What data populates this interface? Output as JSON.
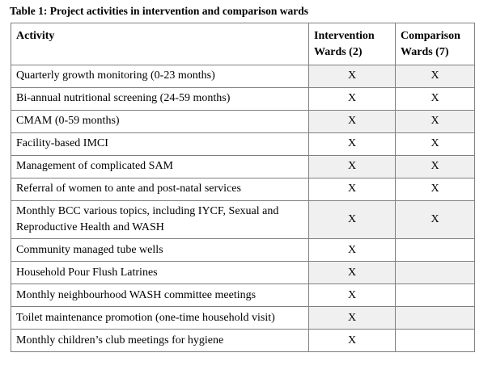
{
  "title": "Table 1: Project activities in intervention and comparison wards",
  "colors": {
    "border": "#808080",
    "row_shading": "#f0f0f1",
    "text": "#000000",
    "background": "#ffffff"
  },
  "table": {
    "columns": [
      {
        "label": "Activity"
      },
      {
        "label": "Intervention Wards (2)"
      },
      {
        "label": "Comparison Wards (7)"
      }
    ],
    "rows": [
      {
        "activity": "Quarterly growth monitoring (0-23 months)",
        "intervention": "X",
        "comparison": "X",
        "shaded": true
      },
      {
        "activity": "Bi-annual nutritional screening (24-59 months)",
        "intervention": "X",
        "comparison": "X",
        "shaded": false
      },
      {
        "activity": "CMAM (0-59 months)",
        "intervention": "X",
        "comparison": "X",
        "shaded": true
      },
      {
        "activity": "Facility-based IMCI",
        "intervention": "X",
        "comparison": "X",
        "shaded": false
      },
      {
        "activity": "Management of complicated SAM",
        "intervention": "X",
        "comparison": "X",
        "shaded": true
      },
      {
        "activity": "Referral of women to ante and post-natal services",
        "intervention": "X",
        "comparison": "X",
        "shaded": false
      },
      {
        "activity": "Monthly BCC various topics, including IYCF, Sexual and Reproductive Health and WASH",
        "intervention": "X",
        "comparison": "X",
        "shaded": true
      },
      {
        "activity": "Community managed tube wells",
        "intervention": "X",
        "comparison": "",
        "shaded": false
      },
      {
        "activity": "Household Pour Flush Latrines",
        "intervention": "X",
        "comparison": "",
        "shaded": true
      },
      {
        "activity": "Monthly neighbourhood WASH committee meetings",
        "intervention": "X",
        "comparison": "",
        "shaded": false
      },
      {
        "activity": "Toilet maintenance promotion (one-time household visit)",
        "intervention": "X",
        "comparison": "",
        "shaded": true
      },
      {
        "activity": "Monthly children’s club meetings for hygiene",
        "intervention": "X",
        "comparison": "",
        "shaded": false
      }
    ]
  }
}
